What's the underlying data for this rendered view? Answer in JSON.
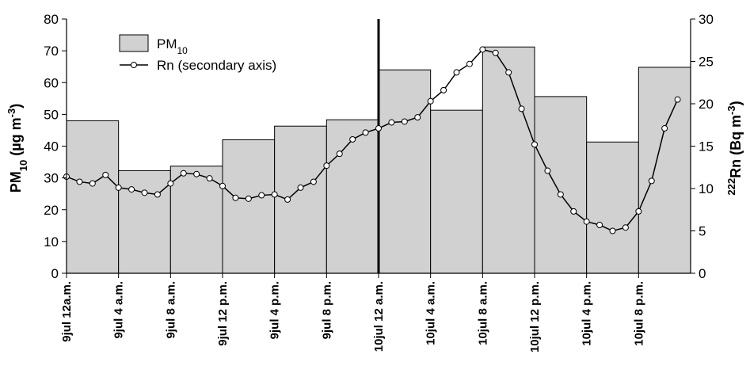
{
  "chart_data": {
    "type": "bar",
    "ylabel": {
      "base": "PM",
      "sub": "10",
      "unit": " (µg m",
      "sup": "-3",
      "close": ")"
    },
    "y2label": {
      "sup_pre": "222",
      "base": "Rn (Bq m",
      "sup": "-3",
      "close": ")"
    },
    "ylim": [
      0,
      80
    ],
    "y2lim": [
      0,
      30
    ],
    "yticks": [
      0,
      10,
      20,
      30,
      40,
      50,
      60,
      70,
      80
    ],
    "y2ticks": [
      0,
      5,
      10,
      15,
      20,
      25,
      30
    ],
    "xlim": [
      0,
      48
    ],
    "x_tick_labels": [
      "9jul 12a.m.",
      "9jul 4 a.m.",
      "9jul 8 a.m.",
      "9jul 12 p.m.",
      "9jul 4 p.m.",
      "9jul 8 p.m.",
      "10jul 12 a.m.",
      "10jul 4 a.m.",
      "10jul 8 a.m.",
      "10jul 12 p.m.",
      "10jul 4 p.m.",
      "10jul 8 p.m."
    ],
    "x_tick_hours": [
      0,
      4,
      8,
      12,
      16,
      20,
      24,
      28,
      32,
      36,
      40,
      44
    ],
    "divider_hour": 24,
    "legend": {
      "position": "top-left",
      "pm_label": "PM",
      "pm_sub": "10",
      "rn_label": "Rn (secondary axis)"
    },
    "series": [
      {
        "name": "PM10",
        "type": "bar",
        "bins_start_hour": [
          0,
          4,
          8,
          12,
          16,
          20,
          24,
          28,
          32,
          36,
          40,
          44
        ],
        "bin_width_hours": 4,
        "values": [
          48,
          32.3,
          33.7,
          42,
          46.3,
          48.3,
          64,
          51.3,
          71.2,
          55.6,
          41.3,
          64.8
        ]
      },
      {
        "name": "Rn (secondary axis)",
        "type": "line",
        "axis": "secondary",
        "x_hours": [
          0,
          1,
          2,
          3,
          4,
          5,
          6,
          7,
          8,
          9,
          10,
          11,
          12,
          13,
          14,
          15,
          16,
          17,
          18,
          19,
          20,
          21,
          22,
          23,
          24,
          25,
          26,
          27,
          28,
          29,
          30,
          31,
          32,
          33,
          34,
          35,
          36,
          37,
          38,
          39,
          40,
          41,
          42,
          43,
          44,
          45,
          46,
          47
        ],
        "values": [
          11.4,
          10.8,
          10.6,
          11.6,
          10.1,
          9.9,
          9.5,
          9.3,
          10.6,
          11.8,
          11.7,
          11.2,
          10.3,
          8.9,
          8.8,
          9.2,
          9.3,
          8.7,
          10.1,
          10.8,
          12.7,
          14.1,
          15.8,
          16.6,
          17.1,
          17.8,
          17.9,
          18.4,
          20.3,
          21.6,
          23.7,
          24.7,
          26.4,
          26.0,
          23.7,
          19.4,
          15.2,
          12.1,
          9.3,
          7.3,
          6.1,
          5.7,
          5.0,
          5.4,
          7.3,
          10.9,
          17.1,
          20.5
        ]
      }
    ]
  }
}
